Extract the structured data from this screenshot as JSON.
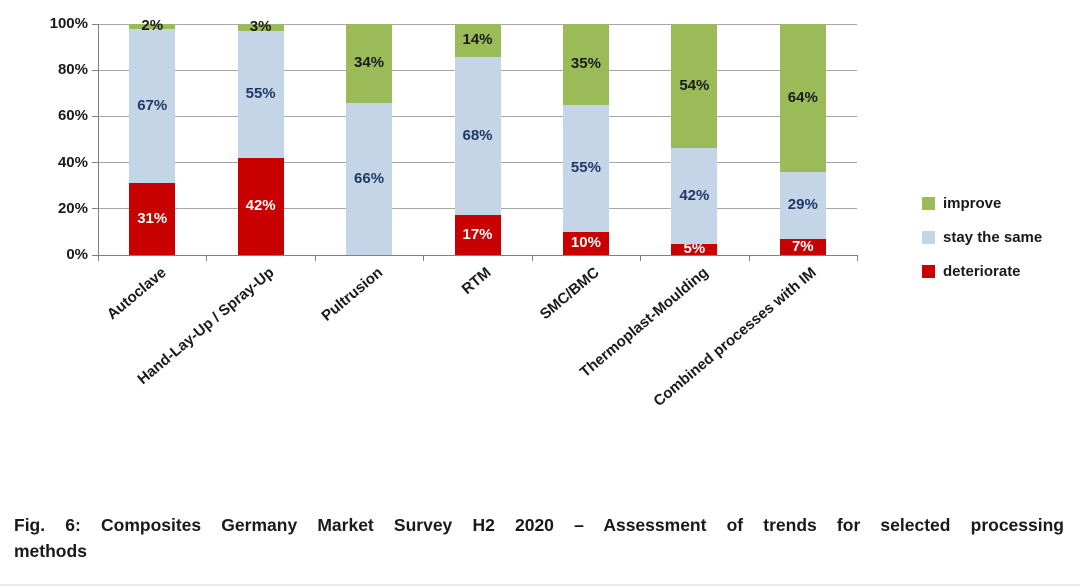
{
  "caption": {
    "line1": "Fig. 6: Composites Germany Market Survey H2 2020 – Assessment of trends for selected processing",
    "line2": "methods"
  },
  "chart_data": {
    "type": "bar",
    "stacked": true,
    "title": "",
    "xlabel": "",
    "ylabel": "",
    "categories": [
      "Autoclave",
      "Hand-Lay-Up / Spray-Up",
      "Pultrusion",
      "RTM",
      "SMC/BMC",
      "Thermoplast-Moulding",
      "Combined processes with IM"
    ],
    "series": [
      {
        "name": "deteriorate",
        "color": "#c80000",
        "label_color": "#ffffff",
        "values": [
          31,
          42,
          0,
          17,
          10,
          5,
          7
        ]
      },
      {
        "name": "stay the same",
        "color": "#c4d5e8",
        "label_color": "#1f3864",
        "values": [
          67,
          55,
          66,
          68,
          55,
          42,
          29
        ]
      },
      {
        "name": "improve",
        "color": "#9bbb59",
        "label_color": "#1a1a1a",
        "values": [
          2,
          3,
          34,
          14,
          35,
          54,
          64
        ]
      }
    ],
    "data_label_suffix": "%",
    "y_ticks": [
      "0%",
      "20%",
      "40%",
      "60%",
      "80%",
      "100%"
    ],
    "y_tick_values": [
      0,
      20,
      40,
      60,
      80,
      100
    ],
    "ylim": [
      0,
      100
    ],
    "grid": true,
    "legend": {
      "position": "right",
      "entries": [
        "improve",
        "stay the same",
        "deteriorate"
      ]
    },
    "colors": {
      "grid": "#a6a6a6",
      "axis": "#808080"
    }
  }
}
